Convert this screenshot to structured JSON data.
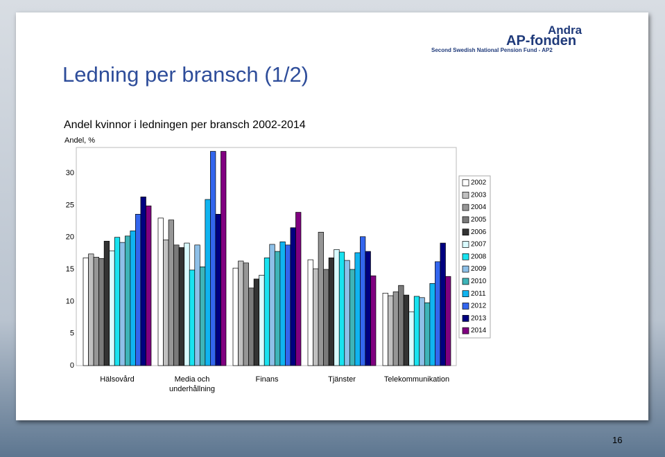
{
  "slide": {
    "title": "Ledning per bransch (1/2)",
    "logo_name_1": "Andra",
    "logo_name_2": "AP-fonden",
    "logo_tagline": "Second Swedish National Pension Fund - AP2",
    "page_number": "16"
  },
  "chart_data": {
    "type": "bar",
    "title": "Andel kvinnor i ledningen per bransch 2002-2014",
    "y_label": "Andel, %",
    "categories": [
      "Hälsovård",
      "Media och underhållning",
      "Finans",
      "Tjänster",
      "Telekommunikation"
    ],
    "series": [
      {
        "name": "2002",
        "color": "#ffffff",
        "values": [
          16.8,
          23.0,
          15.2,
          16.5,
          11.3
        ]
      },
      {
        "name": "2003",
        "color": "#c0c0c0",
        "values": [
          17.4,
          19.6,
          16.3,
          15.1,
          10.9
        ]
      },
      {
        "name": "2004",
        "color": "#969696",
        "values": [
          16.9,
          22.7,
          16.0,
          20.8,
          11.5
        ]
      },
      {
        "name": "2005",
        "color": "#7a7a7a",
        "values": [
          16.7,
          18.8,
          12.1,
          15.0,
          12.5
        ]
      },
      {
        "name": "2006",
        "color": "#333333",
        "values": [
          19.4,
          18.4,
          13.5,
          16.8,
          11.0
        ]
      },
      {
        "name": "2007",
        "color": "#d9fbff",
        "values": [
          17.9,
          19.1,
          14.1,
          18.1,
          8.4
        ]
      },
      {
        "name": "2008",
        "color": "#19e3f0",
        "values": [
          20.0,
          14.9,
          16.8,
          17.7,
          10.8
        ]
      },
      {
        "name": "2009",
        "color": "#8ec0e8",
        "values": [
          19.2,
          18.8,
          18.9,
          16.4,
          10.6
        ]
      },
      {
        "name": "2010",
        "color": "#3eb4b8",
        "values": [
          20.2,
          15.4,
          17.8,
          15.0,
          9.8
        ]
      },
      {
        "name": "2011",
        "color": "#10b4f0",
        "values": [
          21.0,
          25.9,
          19.3,
          17.6,
          12.8
        ]
      },
      {
        "name": "2012",
        "color": "#3366ee",
        "values": [
          23.6,
          33.4,
          18.8,
          20.1,
          16.2
        ]
      },
      {
        "name": "2013",
        "color": "#000080",
        "values": [
          26.3,
          23.6,
          21.5,
          17.8,
          19.1
        ]
      },
      {
        "name": "2014",
        "color": "#800080",
        "values": [
          24.9,
          33.4,
          23.9,
          14.0,
          13.9
        ]
      }
    ],
    "ylim": [
      0,
      34
    ],
    "yticks": [
      0,
      5,
      10,
      15,
      20,
      25,
      30
    ],
    "grid": false,
    "legend": "right"
  }
}
